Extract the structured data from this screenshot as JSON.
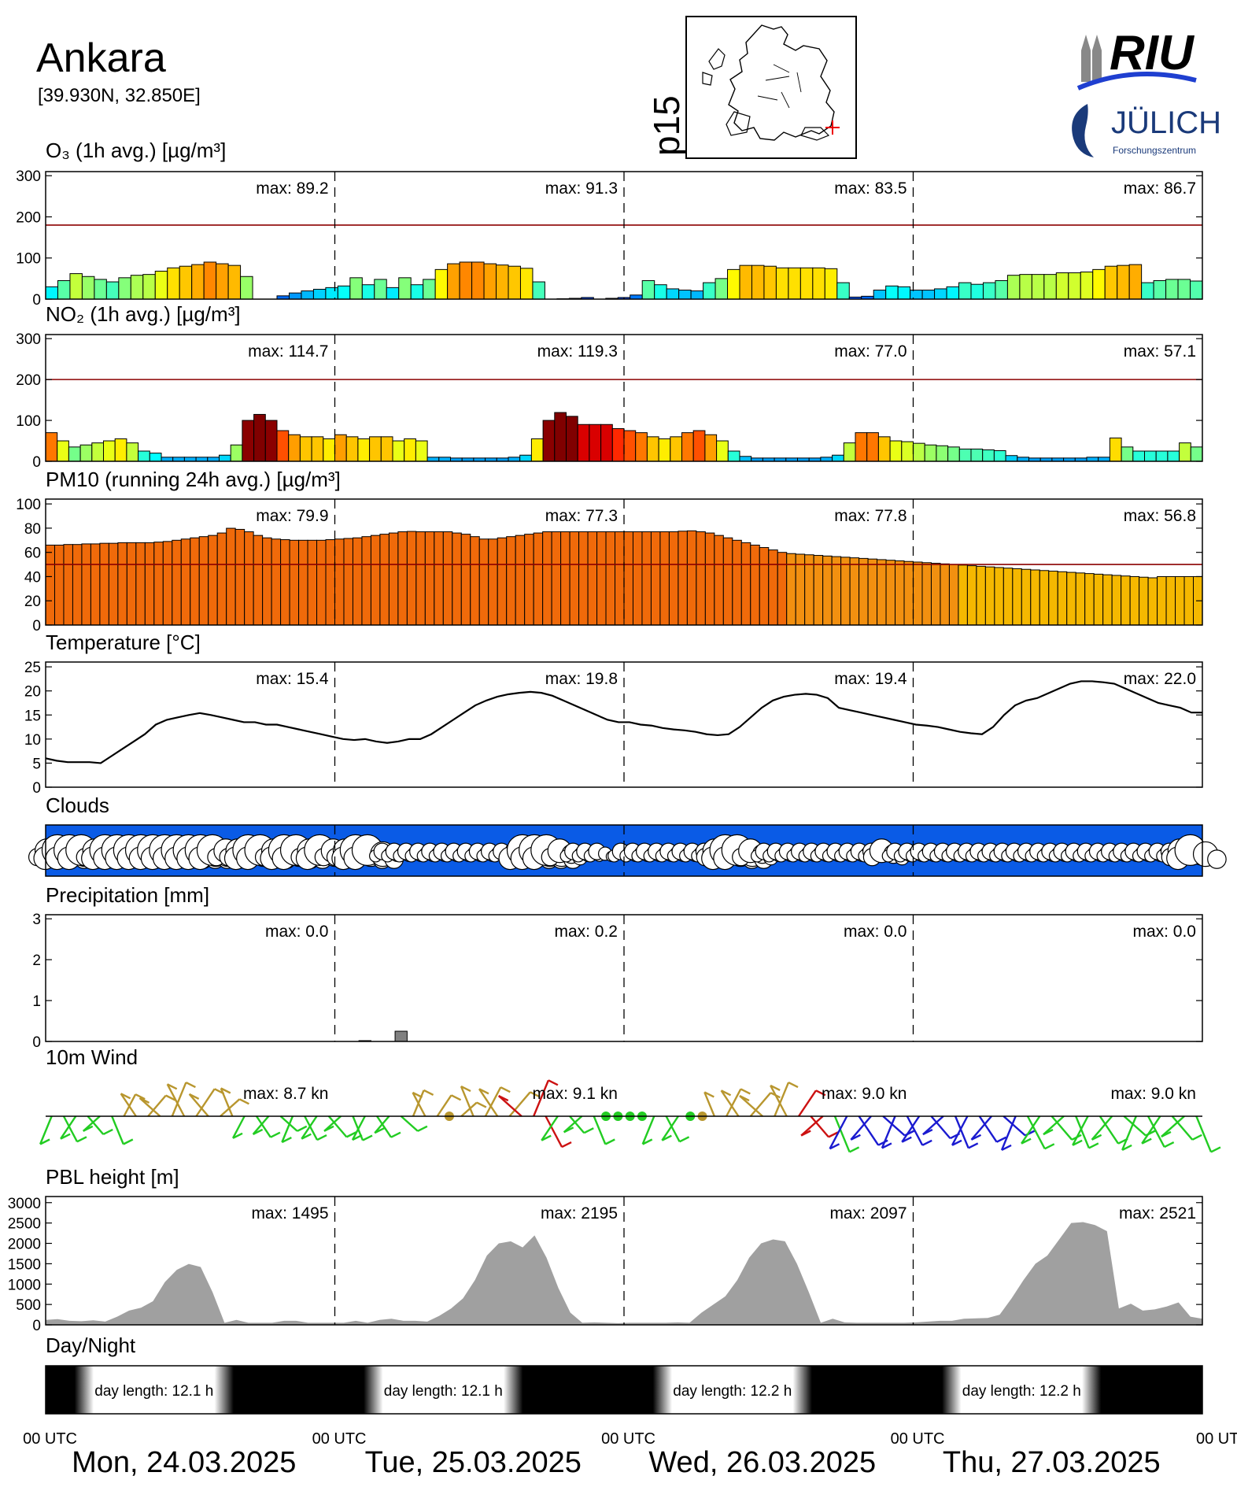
{
  "header": {
    "city": "Ankara",
    "coords": "[39.930N, 32.850E]",
    "map_code": "p15",
    "logo_riu": "RIU",
    "logo_julich": "JÜLICH",
    "logo_julich_sub": "Forschungszentrum"
  },
  "colors": {
    "frame": "#000000",
    "threshold": "#8b0000",
    "sky": "#0a5be6",
    "pbl_fill": "#a0a0a0",
    "precip_bar": "#808080",
    "wind_green": "#22cc22",
    "wind_gold": "#b8962e",
    "wind_red": "#cc1111",
    "wind_blue": "#1a1ad0"
  },
  "x_axis": {
    "day_labels": [
      "Mon, 24.03.2025",
      "Tue, 25.03.2025",
      "Wed, 26.03.2025",
      "Thu, 27.03.2025"
    ],
    "utc_labels": [
      "00 UTC",
      "00 UTC",
      "00 UTC",
      "00 UTC",
      "00 UTC"
    ]
  },
  "chart_data": [
    {
      "id": "o3",
      "type": "bar",
      "title": "O₃ (1h avg.) [µg/m³]",
      "yticks": [
        0,
        100,
        200,
        300
      ],
      "ylim": [
        0,
        310
      ],
      "threshold": 180,
      "max_labels": [
        "max:  89.2",
        "max:  91.3",
        "max:  83.5",
        "max:  86.7"
      ],
      "values": [
        30,
        45,
        62,
        55,
        48,
        42,
        52,
        58,
        60,
        68,
        76,
        80,
        84,
        90,
        86,
        82,
        55,
        0,
        0,
        8,
        15,
        20,
        24,
        28,
        32,
        52,
        35,
        48,
        28,
        52,
        35,
        48,
        72,
        86,
        90,
        90,
        86,
        83,
        80,
        75,
        42,
        0,
        1,
        2,
        4,
        0,
        2,
        4,
        10,
        45,
        35,
        25,
        22,
        20,
        40,
        50,
        72,
        82,
        82,
        80,
        76,
        76,
        76,
        76,
        74,
        40,
        5,
        7,
        22,
        32,
        30,
        22,
        22,
        25,
        30,
        40,
        36,
        40,
        45,
        58,
        60,
        60,
        60,
        64,
        64,
        66,
        72,
        80,
        82,
        84,
        40,
        45,
        48,
        48,
        44
      ]
    },
    {
      "id": "no2",
      "type": "bar",
      "title": "NO₂ (1h avg.) [µg/m³]",
      "yticks": [
        0,
        100,
        200,
        300
      ],
      "ylim": [
        0,
        310
      ],
      "threshold": 200,
      "max_labels": [
        "max: 114.7",
        "max: 119.3",
        "max:  77.0",
        "max:  57.1"
      ],
      "values": [
        70,
        50,
        35,
        40,
        45,
        50,
        55,
        45,
        25,
        20,
        10,
        10,
        10,
        10,
        10,
        15,
        40,
        100,
        114.7,
        100,
        75,
        65,
        60,
        60,
        55,
        65,
        60,
        55,
        60,
        60,
        50,
        55,
        50,
        10,
        10,
        8,
        8,
        8,
        8,
        8,
        10,
        15,
        55,
        100,
        119.3,
        110,
        90,
        90,
        90,
        80,
        75,
        70,
        60,
        55,
        60,
        70,
        75,
        65,
        50,
        25,
        12,
        8,
        8,
        8,
        8,
        8,
        8,
        10,
        15,
        45,
        70,
        70,
        60,
        50,
        48,
        44,
        40,
        38,
        35,
        30,
        30,
        28,
        26,
        14,
        10,
        8,
        8,
        8,
        8,
        8,
        10,
        10,
        57.1,
        35,
        25,
        25,
        25,
        25,
        45,
        35
      ]
    },
    {
      "id": "pm10",
      "type": "bar",
      "title": "PM10 (running 24h avg.) [µg/m³]",
      "yticks": [
        0,
        20,
        40,
        60,
        80,
        100
      ],
      "ylim": [
        0,
        104
      ],
      "threshold": 50,
      "max_labels": [
        "max:  79.9",
        "max:  77.3",
        "max:  77.8",
        "max:  56.8"
      ],
      "values": [
        66,
        66,
        66.5,
        66.5,
        67,
        67,
        67.5,
        67.5,
        68,
        68,
        68,
        68,
        68.5,
        69,
        70,
        71,
        72,
        73,
        74,
        76,
        79.9,
        79,
        77,
        74,
        72,
        71,
        70.5,
        70,
        70,
        70,
        70,
        70.5,
        71,
        71.5,
        72,
        73,
        74,
        75,
        76,
        77,
        77.3,
        77,
        77,
        77,
        77,
        76,
        75,
        73,
        71,
        71,
        72,
        73,
        74,
        75,
        76,
        77,
        77,
        77,
        77,
        77,
        77,
        77,
        77,
        77,
        77,
        77,
        77,
        77,
        77,
        77,
        77.5,
        77.8,
        77,
        76,
        74,
        72,
        70,
        68,
        66,
        64,
        62,
        60,
        59,
        58.5,
        58,
        57.5,
        57,
        56.5,
        56,
        55.5,
        55,
        54.5,
        54,
        53.5,
        53,
        52.5,
        52,
        51.5,
        51,
        50.5,
        50,
        49.5,
        49,
        48.5,
        48,
        47.5,
        47,
        46.5,
        46,
        45.5,
        45,
        44.5,
        44,
        43.5,
        43,
        42.5,
        42,
        41.5,
        41,
        40.5,
        40,
        39.5,
        39,
        40,
        40,
        40,
        40,
        40
      ]
    },
    {
      "id": "temp",
      "type": "line",
      "title": "Temperature [°C]",
      "yticks": [
        0,
        5,
        10,
        15,
        20,
        25
      ],
      "ylim": [
        0,
        26
      ],
      "max_labels": [
        "max:  15.4",
        "max:  19.8",
        "max:  19.4",
        "max:  22.0"
      ],
      "values": [
        6,
        5.5,
        5.2,
        5.2,
        5.2,
        5,
        6.5,
        8,
        9.5,
        11,
        13,
        14,
        14.5,
        15,
        15.4,
        15,
        14.5,
        14,
        13.5,
        13.5,
        13,
        13,
        12.5,
        12,
        11.5,
        11,
        10.5,
        10,
        9.8,
        10,
        9.5,
        9.2,
        9.5,
        10,
        10,
        11,
        12.5,
        14,
        15.5,
        17,
        18,
        18.8,
        19.3,
        19.6,
        19.8,
        19.6,
        19,
        18,
        17,
        16,
        15,
        14,
        13.5,
        13.5,
        13,
        12.8,
        12.3,
        12,
        11.8,
        11.5,
        11,
        10.8,
        11,
        12.5,
        14.5,
        16.5,
        18,
        18.8,
        19.2,
        19.4,
        19.2,
        18.5,
        16.5,
        16,
        15.5,
        15,
        14.5,
        14,
        13.5,
        13,
        12.8,
        12.5,
        12,
        11.5,
        11.2,
        11,
        12.5,
        15,
        17,
        18,
        18.5,
        19.5,
        20.5,
        21.5,
        22,
        22,
        21.8,
        21.5,
        20.5,
        19.5,
        18.5,
        17.5,
        17,
        16.5,
        15.5,
        15.5
      ]
    },
    {
      "id": "clouds",
      "type": "other",
      "title": "Clouds",
      "cloud_sizes": [
        2,
        3,
        3,
        3,
        2,
        3,
        3,
        3,
        3,
        3,
        3,
        3,
        3,
        3,
        3,
        2,
        2,
        3,
        3,
        2,
        3,
        3,
        2,
        3,
        2,
        2,
        3,
        3,
        1,
        1,
        1,
        1,
        1,
        1,
        1,
        1,
        1,
        1,
        1,
        1,
        3,
        3,
        3,
        2,
        1,
        1,
        1,
        0,
        1,
        1,
        1,
        1,
        1,
        1,
        1,
        1,
        2,
        3,
        3,
        2,
        1,
        1,
        1,
        1,
        1,
        1,
        1,
        1,
        1,
        1,
        2,
        1,
        1,
        1,
        1,
        1,
        1,
        1,
        1,
        1,
        1,
        1,
        1,
        1,
        1,
        1,
        1,
        1,
        1,
        1,
        1,
        1,
        1,
        1,
        1,
        2,
        3
      ]
    },
    {
      "id": "precip",
      "type": "bar",
      "title": "Precipitation [mm]",
      "yticks": [
        0,
        1,
        2,
        3
      ],
      "ylim": [
        0,
        3.1
      ],
      "max_labels": [
        "max:   0.0",
        "max:   0.2",
        "max:   0.0",
        "max:   0.0"
      ],
      "values": [
        0,
        0,
        0,
        0,
        0,
        0,
        0,
        0,
        0,
        0,
        0,
        0,
        0,
        0,
        0,
        0,
        0,
        0,
        0,
        0,
        0,
        0,
        0,
        0,
        0,
        0,
        0.02,
        0,
        0,
        0.25,
        0,
        0,
        0,
        0,
        0,
        0,
        0,
        0,
        0,
        0,
        0,
        0,
        0,
        0,
        0,
        0,
        0,
        0,
        0,
        0,
        0,
        0,
        0,
        0,
        0,
        0,
        0,
        0,
        0,
        0,
        0,
        0,
        0,
        0,
        0,
        0,
        0,
        0,
        0,
        0,
        0,
        0,
        0,
        0,
        0,
        0,
        0,
        0,
        0,
        0,
        0,
        0,
        0,
        0,
        0,
        0,
        0,
        0,
        0,
        0,
        0,
        0,
        0,
        0,
        0,
        0
      ]
    },
    {
      "id": "wind",
      "type": "other",
      "title": "10m Wind",
      "max_labels": [
        "max:   8.7 kn",
        "max:   9.1 kn",
        "max:   9.0 kn",
        "max:   9.0 kn"
      ],
      "speed_kn": [
        5,
        5,
        5,
        4,
        4,
        5,
        3,
        5,
        6,
        7,
        8,
        8.7,
        8,
        7,
        6,
        5,
        3,
        4,
        4,
        4,
        4,
        4,
        5,
        6,
        4,
        3,
        4,
        4,
        3,
        4,
        4,
        4,
        4,
        2,
        3,
        6,
        7,
        8,
        8.5,
        9,
        9.1,
        8,
        6,
        3,
        5,
        5,
        2,
        1,
        1,
        1,
        5,
        5,
        6,
        2,
        2,
        3,
        6,
        7,
        8,
        9,
        8,
        8,
        7,
        6,
        8,
        9,
        9,
        9,
        8,
        8,
        7,
        7,
        7,
        7,
        7,
        7,
        7,
        7,
        8,
        8,
        8,
        9,
        8,
        8,
        7,
        7,
        7,
        8,
        8,
        8,
        8,
        8,
        8,
        8,
        9,
        9
      ]
    },
    {
      "id": "pbl",
      "type": "area",
      "title": "PBL height [m]",
      "yticks": [
        0,
        500,
        1000,
        1500,
        2000,
        2500,
        3000
      ],
      "ylim": [
        0,
        3150
      ],
      "max_labels": [
        "max:  1495",
        "max:  2195",
        "max:  2097",
        "max:  2521"
      ],
      "values": [
        120,
        140,
        100,
        90,
        110,
        80,
        200,
        350,
        420,
        580,
        1050,
        1350,
        1495,
        1420,
        800,
        50,
        120,
        50,
        50,
        50,
        100,
        100,
        50,
        50,
        50,
        50,
        100,
        50,
        120,
        150,
        100,
        100,
        80,
        220,
        400,
        650,
        1100,
        1700,
        2000,
        2050,
        1900,
        2195,
        1650,
        900,
        300,
        50,
        60,
        50,
        40,
        50,
        50,
        50,
        50,
        60,
        50,
        300,
        500,
        700,
        1100,
        1650,
        2000,
        2097,
        2050,
        1500,
        800,
        50,
        150,
        60,
        50,
        50,
        50,
        50,
        50,
        60,
        80,
        100,
        100,
        150,
        160,
        170,
        250,
        650,
        1100,
        1500,
        1700,
        2100,
        2500,
        2521,
        2450,
        2300,
        400,
        520,
        350,
        380,
        450,
        550,
        200,
        150
      ]
    },
    {
      "id": "daynight",
      "type": "other",
      "title": "Day/Night",
      "day_lengths": [
        "day length:  12.1 h",
        "day length:  12.1 h",
        "day length:  12.2 h",
        "day length:  12.2 h"
      ]
    }
  ]
}
